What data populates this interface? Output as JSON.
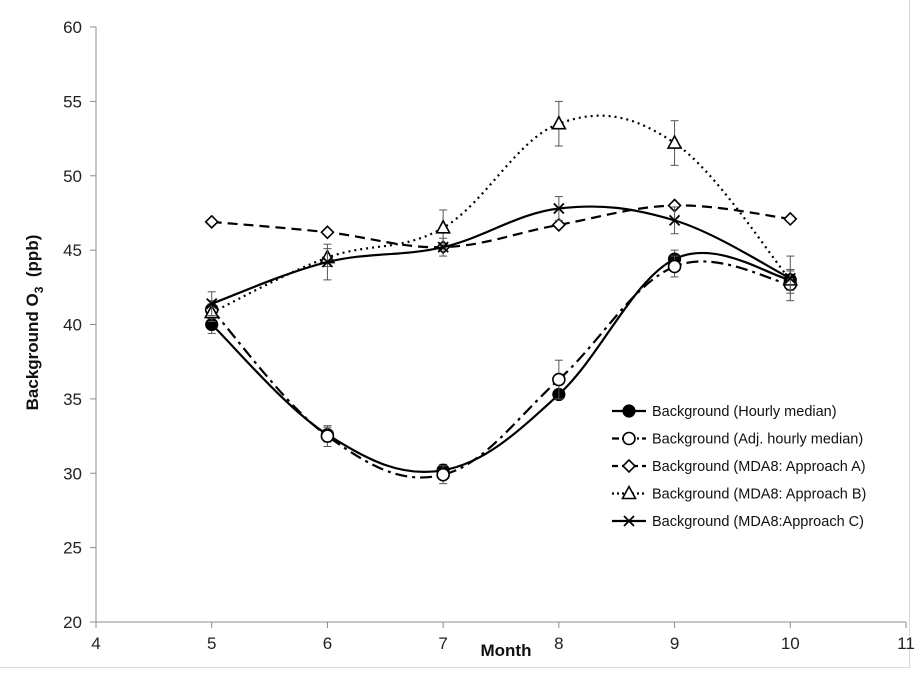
{
  "chart_data": {
    "type": "line",
    "xlabel": "Month",
    "ylabel": "Background O",
    "ylabel_sub": "3",
    "ylabel_suffix": "  (ppb)",
    "xlim": [
      4,
      11
    ],
    "ylim": [
      20,
      60
    ],
    "xticks": [
      4,
      5,
      6,
      7,
      8,
      9,
      10,
      11
    ],
    "yticks": [
      20,
      25,
      30,
      35,
      40,
      45,
      50,
      55,
      60
    ],
    "grid": false,
    "legend_position": "bottom-right",
    "series": [
      {
        "name": "Background (Hourly median)",
        "marker": "filled-circle",
        "line": "solid",
        "color": "#000000",
        "x": [
          5,
          6,
          7,
          8,
          9,
          10
        ],
        "y": [
          40.0,
          32.6,
          30.2,
          35.3,
          44.4,
          43.0
        ],
        "err": [
          0.6,
          0.5,
          0.4,
          0.0,
          0.6,
          0.6
        ]
      },
      {
        "name": "Background (Adj. hourly median)",
        "marker": "open-circle",
        "line": "dashdot",
        "color": "#000000",
        "x": [
          5,
          6,
          7,
          8,
          9,
          10
        ],
        "y": [
          41.0,
          32.5,
          29.9,
          36.3,
          43.9,
          42.7
        ],
        "err": [
          0.6,
          0.7,
          0.6,
          1.3,
          0.7,
          0.6
        ]
      },
      {
        "name": "Background (MDA8: Approach A)",
        "marker": "open-diamond",
        "line": "dashed",
        "color": "#000000",
        "x": [
          5,
          6,
          7,
          8,
          9,
          10
        ],
        "y": [
          46.9,
          46.2,
          45.2,
          46.7,
          48.0,
          47.1
        ],
        "err": [
          0,
          0,
          0,
          0,
          0,
          0
        ]
      },
      {
        "name": "Background (MDA8: Approach B)",
        "marker": "open-triangle",
        "line": "dotted",
        "color": "#000000",
        "x": [
          5,
          6,
          7,
          8,
          9,
          10
        ],
        "y": [
          40.8,
          44.5,
          46.5,
          53.5,
          52.2,
          43.0
        ],
        "err": [
          0.6,
          0.6,
          1.2,
          1.5,
          1.5,
          0.7
        ]
      },
      {
        "name": "Background (MDA8:Approach C)",
        "marker": "x",
        "line": "solid",
        "color": "#000000",
        "x": [
          5,
          6,
          7,
          8,
          9,
          10
        ],
        "y": [
          41.4,
          44.2,
          45.2,
          47.8,
          47.0,
          43.1
        ],
        "err": [
          0.8,
          1.2,
          0.6,
          0.8,
          0.9,
          1.5
        ]
      }
    ]
  }
}
